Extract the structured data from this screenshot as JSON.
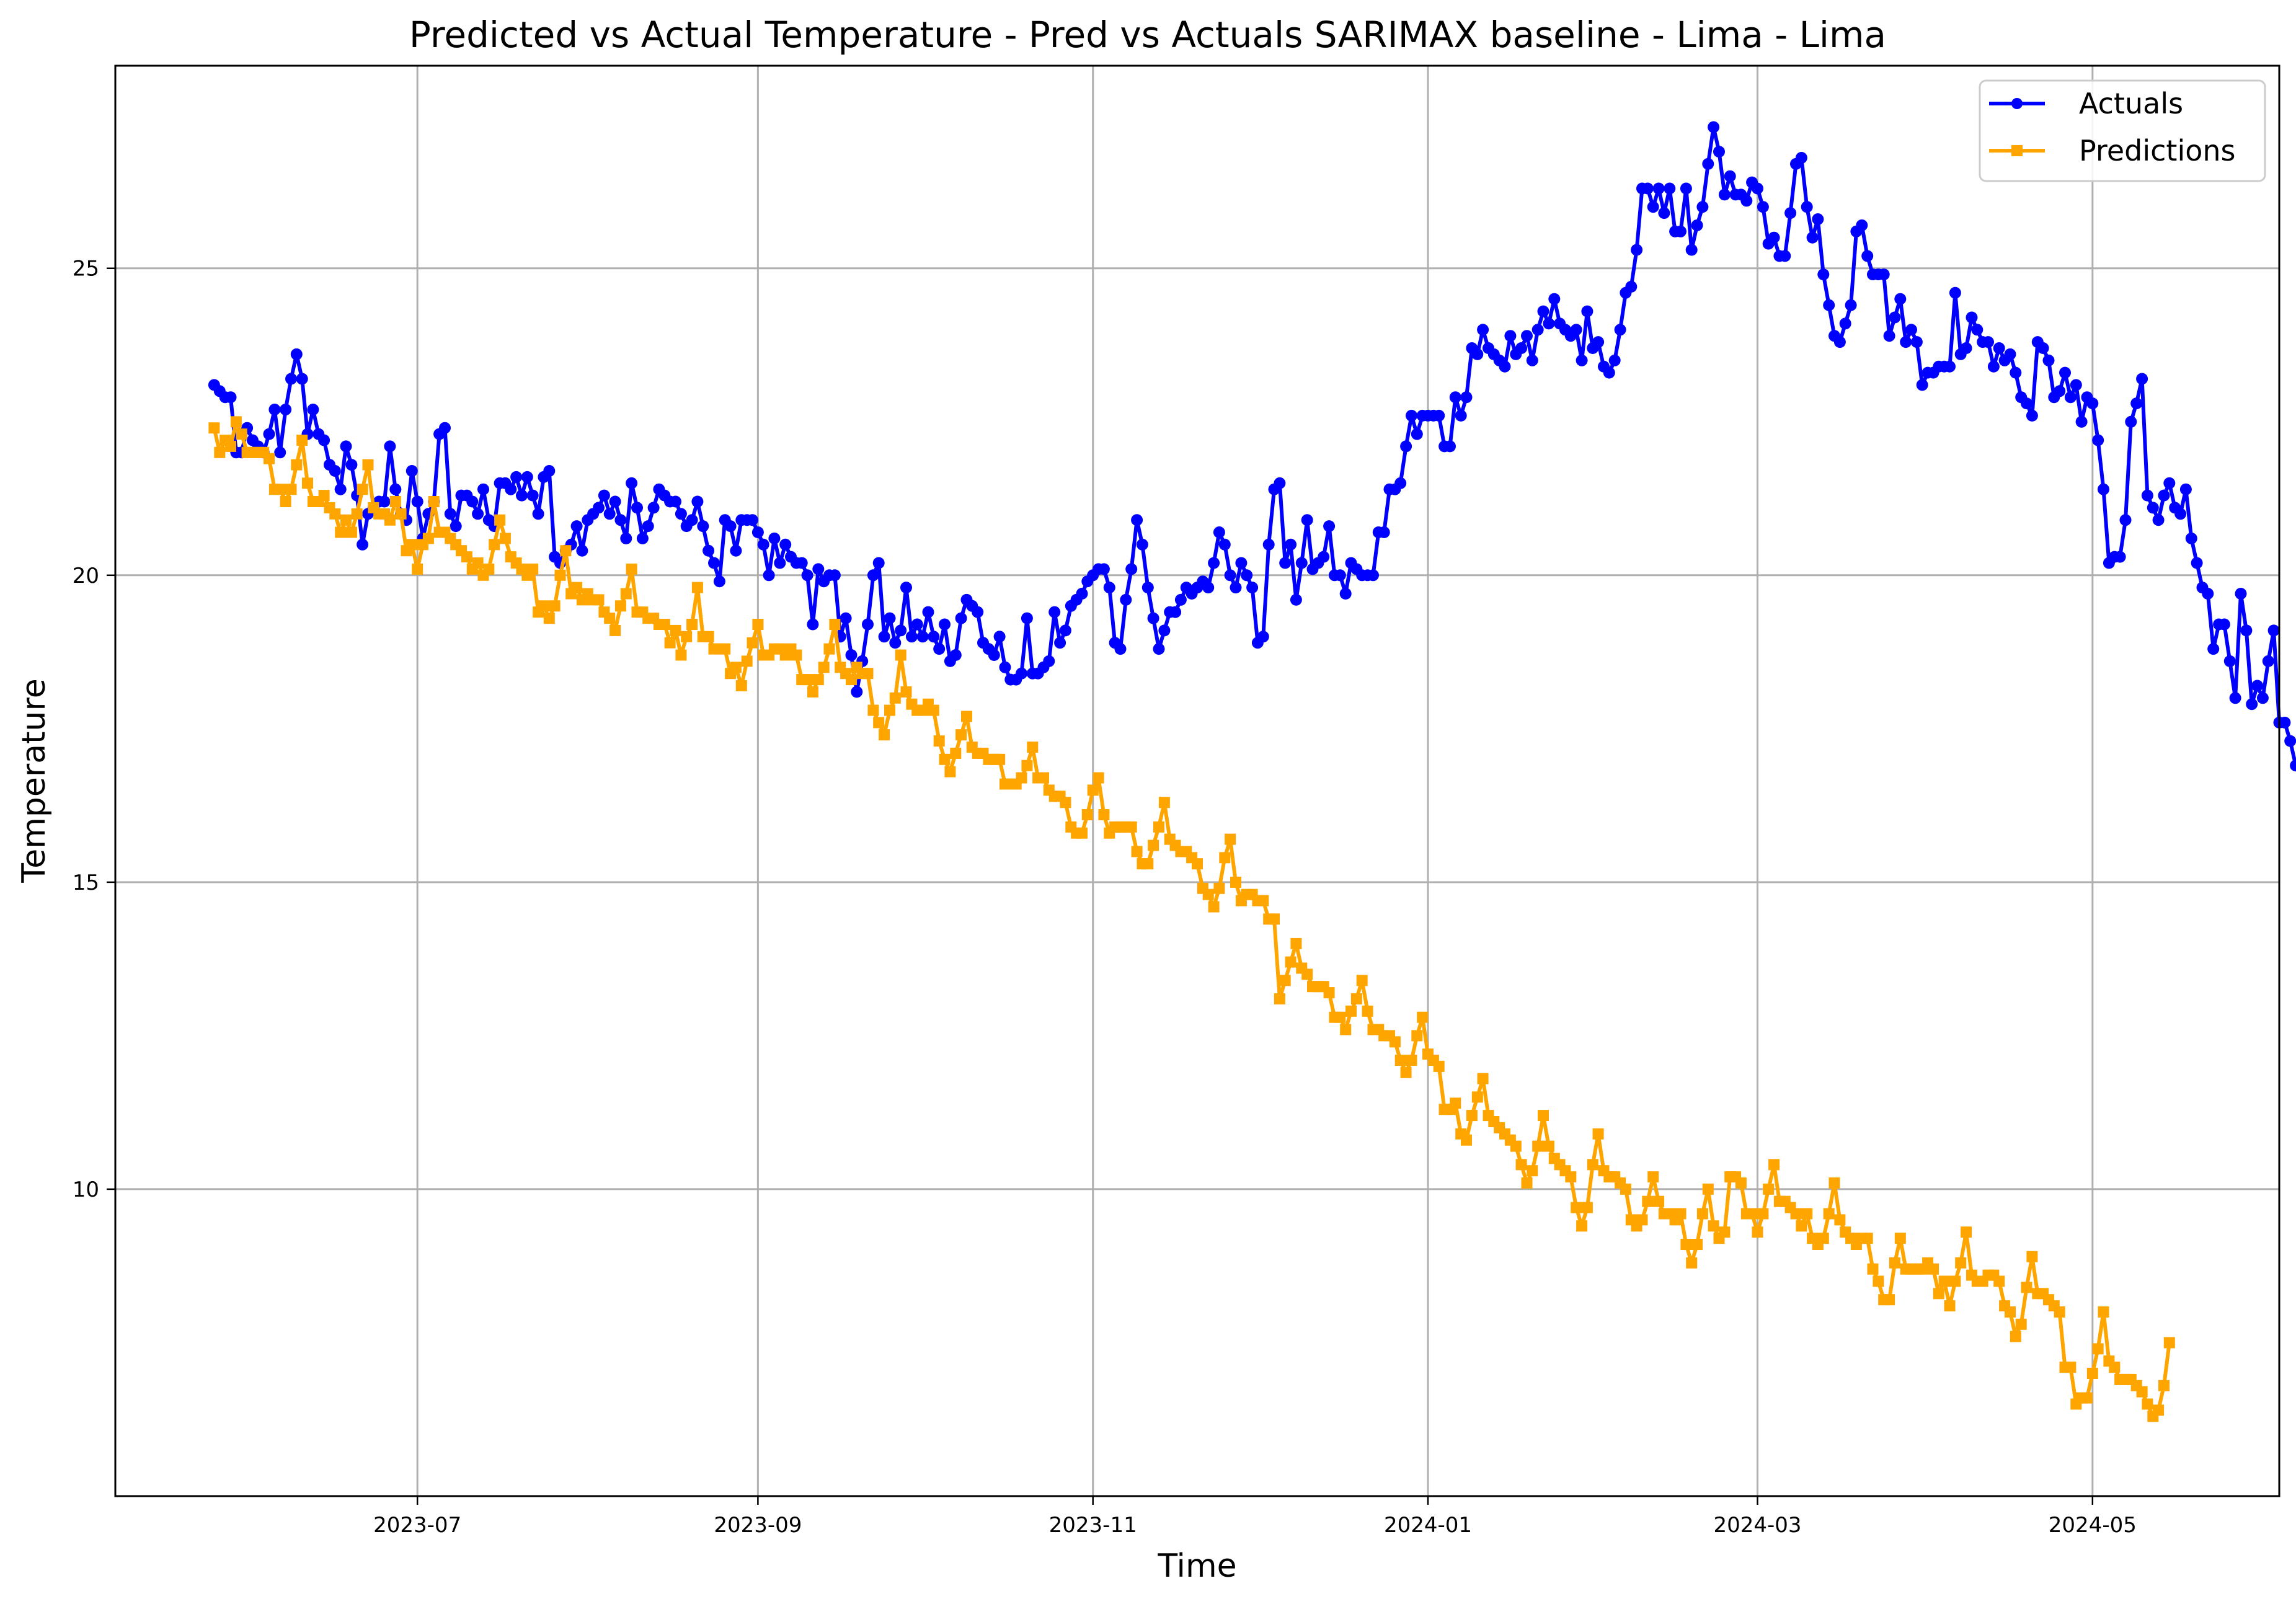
{
  "chart_data": {
    "type": "line",
    "title": "Predicted vs Actual Temperature - Pred vs Actuals SARIMAX baseline - Lima - Lima",
    "xlabel": "Time",
    "ylabel": "Temperature",
    "xlim": [
      "2023-05-07",
      "2024-06-04"
    ],
    "ylim": [
      5.0,
      28.3
    ],
    "x_ticks": [
      "2023-07-01",
      "2023-09-01",
      "2023-11-01",
      "2024-01-01",
      "2024-03-01",
      "2024-05-01"
    ],
    "x_tick_labels": [
      "2023-07",
      "2023-09",
      "2023-11",
      "2024-01",
      "2024-03",
      "2024-05"
    ],
    "y_ticks": [
      10,
      15,
      20,
      25
    ],
    "y_tick_labels": [
      "10",
      "15",
      "20",
      "25"
    ],
    "grid": true,
    "legend_position": "top-right",
    "x_start": "2023-05-25",
    "x_step_days": 1,
    "series": [
      {
        "name": "Actuals",
        "color": "#0000ff",
        "marker": "circle",
        "values": [
          23.1,
          23.0,
          22.9,
          22.9,
          22.0,
          22.0,
          22.4,
          22.2,
          22.1,
          22.0,
          22.3,
          22.7,
          22.0,
          22.7,
          23.2,
          23.6,
          23.2,
          22.3,
          22.7,
          22.3,
          22.2,
          21.8,
          21.7,
          21.4,
          22.1,
          21.8,
          21.3,
          20.5,
          21.0,
          21.1,
          21.2,
          21.2,
          22.1,
          21.4,
          21.0,
          20.9,
          21.7,
          21.2,
          20.6,
          21.0,
          21.2,
          22.3,
          22.4,
          21.0,
          20.8,
          21.3,
          21.3,
          21.2,
          21.0,
          21.4,
          20.9,
          20.8,
          21.5,
          21.5,
          21.4,
          21.6,
          21.3,
          21.6,
          21.3,
          21.0,
          21.6,
          21.7,
          20.3,
          20.2,
          20.4,
          20.5,
          20.8,
          20.4,
          20.9,
          21.0,
          21.1,
          21.3,
          21.0,
          21.2,
          20.9,
          20.6,
          21.5,
          21.1,
          20.6,
          20.8,
          21.1,
          21.4,
          21.3,
          21.2,
          21.2,
          21.0,
          20.8,
          20.9,
          21.2,
          20.8,
          20.4,
          20.2,
          19.9,
          20.9,
          20.8,
          20.4,
          20.9,
          20.9,
          20.9,
          20.7,
          20.5,
          20.0,
          20.6,
          20.2,
          20.5,
          20.3,
          20.2,
          20.2,
          20.0,
          19.2,
          20.1,
          19.9,
          20.0,
          20.0,
          19.0,
          19.3,
          18.7,
          18.1,
          18.6,
          19.2,
          20.0,
          20.2,
          19.0,
          19.3,
          18.9,
          19.1,
          19.8,
          19.0,
          19.2,
          19.0,
          19.4,
          19.0,
          18.8,
          19.2,
          18.6,
          18.7,
          19.3,
          19.6,
          19.5,
          19.4,
          18.9,
          18.8,
          18.7,
          19.0,
          18.5,
          18.3,
          18.3,
          18.4,
          19.3,
          18.4,
          18.4,
          18.5,
          18.6,
          19.4,
          18.9,
          19.1,
          19.5,
          19.6,
          19.7,
          19.9,
          20.0,
          20.1,
          20.1,
          19.8,
          18.9,
          18.8,
          19.6,
          20.1,
          20.9,
          20.5,
          19.8,
          19.3,
          18.8,
          19.1,
          19.4,
          19.4,
          19.6,
          19.8,
          19.7,
          19.8,
          19.9,
          19.8,
          20.2,
          20.7,
          20.5,
          20.0,
          19.8,
          20.2,
          20.0,
          19.8,
          18.9,
          19.0,
          20.5,
          21.4,
          21.5,
          20.2,
          20.5,
          19.6,
          20.2,
          20.9,
          20.1,
          20.2,
          20.3,
          20.8,
          20.0,
          20.0,
          19.7,
          20.2,
          20.1,
          20.0,
          20.0,
          20.0,
          20.7,
          20.7,
          21.4,
          21.4,
          21.5,
          22.1,
          22.6,
          22.3,
          22.6,
          22.6,
          22.6,
          22.6,
          22.1,
          22.1,
          22.9,
          22.6,
          22.9,
          23.7,
          23.6,
          24.0,
          23.7,
          23.6,
          23.5,
          23.4,
          23.9,
          23.6,
          23.7,
          23.9,
          23.5,
          24.0,
          24.3,
          24.1,
          24.5,
          24.1,
          24.0,
          23.9,
          24.0,
          23.5,
          24.3,
          23.7,
          23.8,
          23.4,
          23.3,
          23.5,
          24.0,
          24.6,
          24.7,
          25.3,
          26.3,
          26.3,
          26.0,
          26.3,
          25.9,
          26.3,
          25.6,
          25.6,
          26.3,
          25.3,
          25.7,
          26.0,
          26.7,
          27.3,
          26.9,
          26.2,
          26.5,
          26.2,
          26.2,
          26.1,
          26.4,
          26.3,
          26.0,
          25.4,
          25.5,
          25.2,
          25.2,
          25.9,
          26.7,
          26.8,
          26.0,
          25.5,
          25.8,
          24.9,
          24.4,
          23.9,
          23.8,
          24.1,
          24.4,
          25.6,
          25.7,
          25.2,
          24.9,
          24.9,
          24.9,
          23.9,
          24.2,
          24.5,
          23.8,
          24.0,
          23.8,
          23.1,
          23.3,
          23.3,
          23.4,
          23.4,
          23.4,
          24.6,
          23.6,
          23.7,
          24.2,
          24.0,
          23.8,
          23.8,
          23.4,
          23.7,
          23.5,
          23.6,
          23.3,
          22.9,
          22.8,
          22.6,
          23.8,
          23.7,
          23.5,
          22.9,
          23.0,
          23.3,
          22.9,
          23.1,
          22.5,
          22.9,
          22.8,
          22.2,
          21.4,
          20.2,
          20.3,
          20.3,
          20.9,
          22.5,
          22.8,
          23.2,
          21.3,
          21.1,
          20.9,
          21.3,
          21.5,
          21.1,
          21.0,
          21.4,
          20.6,
          20.2,
          19.8,
          19.7,
          18.8,
          19.2,
          19.2,
          18.6,
          18.0,
          19.7,
          19.1,
          17.9,
          18.2,
          18.0,
          18.6,
          19.1,
          17.6,
          17.6,
          17.3,
          16.9
        ]
      },
      {
        "name": "Predictions",
        "color": "#ffa500",
        "marker": "square",
        "values": [
          22.4,
          22.0,
          22.2,
          22.1,
          22.5,
          22.3,
          22.0,
          22.0,
          22.0,
          22.0,
          21.9,
          21.4,
          21.4,
          21.2,
          21.4,
          21.8,
          22.2,
          21.5,
          21.2,
          21.2,
          21.3,
          21.1,
          21.0,
          20.7,
          20.9,
          20.7,
          21.0,
          21.4,
          21.8,
          21.1,
          21.0,
          21.0,
          20.9,
          21.2,
          21.0,
          20.4,
          20.5,
          20.1,
          20.5,
          20.6,
          21.2,
          20.7,
          20.7,
          20.6,
          20.5,
          20.4,
          20.3,
          20.1,
          20.2,
          20.0,
          20.1,
          20.5,
          20.9,
          20.6,
          20.3,
          20.2,
          20.1,
          20.0,
          20.1,
          19.4,
          19.5,
          19.3,
          19.5,
          20.0,
          20.4,
          19.7,
          19.8,
          19.6,
          19.7,
          19.6,
          19.6,
          19.4,
          19.3,
          19.1,
          19.5,
          19.7,
          20.1,
          19.4,
          19.4,
          19.3,
          19.3,
          19.2,
          19.2,
          18.9,
          19.1,
          18.7,
          19.0,
          19.2,
          19.8,
          19.0,
          19.0,
          18.8,
          18.8,
          18.8,
          18.4,
          18.5,
          18.2,
          18.6,
          18.9,
          19.2,
          18.7,
          18.7,
          18.8,
          18.8,
          18.7,
          18.8,
          18.7,
          18.3,
          18.3,
          18.1,
          18.3,
          18.5,
          18.8,
          19.2,
          18.5,
          18.4,
          18.3,
          18.5,
          18.4,
          18.4,
          17.8,
          17.6,
          17.4,
          17.8,
          18.0,
          18.7,
          18.1,
          17.9,
          17.8,
          17.8,
          17.9,
          17.8,
          17.3,
          17.0,
          16.8,
          17.1,
          17.4,
          17.7,
          17.2,
          17.1,
          17.1,
          17.0,
          17.0,
          17.0,
          16.6,
          16.6,
          16.6,
          16.7,
          16.9,
          17.2,
          16.7,
          16.7,
          16.5,
          16.4,
          16.4,
          16.3,
          15.9,
          15.8,
          15.8,
          16.1,
          16.5,
          16.7,
          16.1,
          15.8,
          15.9,
          15.9,
          15.9,
          15.9,
          15.5,
          15.3,
          15.3,
          15.6,
          15.9,
          16.3,
          15.7,
          15.6,
          15.5,
          15.5,
          15.4,
          15.3,
          14.9,
          14.8,
          14.6,
          14.9,
          15.4,
          15.7,
          15.0,
          14.7,
          14.8,
          14.8,
          14.7,
          14.7,
          14.4,
          14.4,
          13.1,
          13.4,
          13.7,
          14.0,
          13.6,
          13.5,
          13.3,
          13.3,
          13.3,
          13.2,
          12.8,
          12.8,
          12.6,
          12.9,
          13.1,
          13.4,
          12.9,
          12.6,
          12.6,
          12.5,
          12.5,
          12.4,
          12.1,
          11.9,
          12.1,
          12.5,
          12.8,
          12.2,
          12.1,
          12.0,
          11.3,
          11.3,
          11.4,
          10.9,
          10.8,
          11.2,
          11.5,
          11.8,
          11.2,
          11.1,
          11.0,
          10.9,
          10.8,
          10.7,
          10.4,
          10.1,
          10.3,
          10.7,
          11.2,
          10.7,
          10.5,
          10.4,
          10.3,
          10.2,
          9.7,
          9.4,
          9.7,
          10.4,
          10.9,
          10.3,
          10.2,
          10.2,
          10.1,
          10.0,
          9.5,
          9.4,
          9.5,
          9.8,
          10.2,
          9.8,
          9.6,
          9.6,
          9.5,
          9.6,
          9.1,
          8.8,
          9.1,
          9.6,
          10.0,
          9.4,
          9.2,
          9.3,
          10.2,
          10.2,
          10.1,
          9.6,
          9.6,
          9.3,
          9.6,
          10.0,
          10.4,
          9.8,
          9.8,
          9.7,
          9.6,
          9.4,
          9.6,
          9.2,
          9.1,
          9.2,
          9.6,
          10.1,
          9.5,
          9.3,
          9.2,
          9.1,
          9.2,
          9.2,
          8.7,
          8.5,
          8.2,
          8.2,
          8.8,
          9.2,
          8.7,
          8.7,
          8.7,
          8.7,
          8.8,
          8.7,
          8.3,
          8.5,
          8.1,
          8.5,
          8.8,
          9.3,
          8.6,
          8.5,
          8.5,
          8.6,
          8.6,
          8.5,
          8.1,
          8.0,
          7.6,
          7.8,
          8.4,
          8.9,
          8.3,
          8.3,
          8.2,
          8.1,
          8.0,
          7.1,
          7.1,
          6.5,
          6.6,
          6.6,
          7.0,
          7.4,
          8.0,
          7.2,
          7.1,
          6.9,
          6.9,
          6.9,
          6.8,
          6.7,
          6.5,
          6.3,
          6.4,
          6.8,
          7.5
        ]
      }
    ]
  }
}
